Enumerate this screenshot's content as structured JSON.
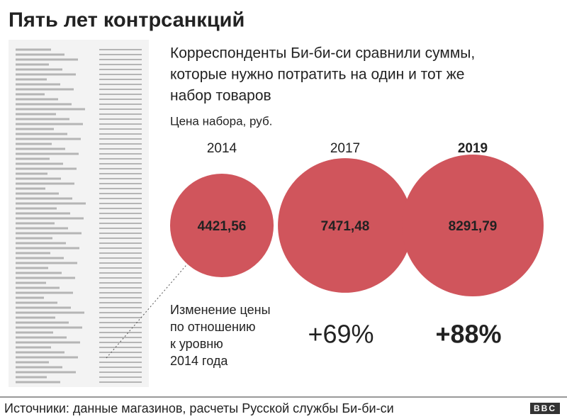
{
  "chart_data": {
    "type": "bubble",
    "title": "Пять лет контрсанкций",
    "subtitle": [
      "Корреспонденты Би-би-си сравнили суммы,",
      "которые нужно потратить на один и тот же",
      "набор товаров"
    ],
    "value_label": "Цена набора, руб.",
    "categories": [
      "2014",
      "2017",
      "2019"
    ],
    "values": [
      4421.56,
      7471.48,
      8291.79
    ],
    "value_labels": [
      "4421,56",
      "7471,48",
      "8291,79"
    ],
    "color": "#d0555c",
    "change_label": [
      "Изменение цены",
      "по отношению",
      "к уровню",
      "2014 года"
    ],
    "changes": [
      null,
      69,
      88
    ],
    "change_labels": [
      null,
      "+69%",
      "+88%"
    ],
    "source": "Источники: данные магазинов, расчеты Русской службы Би-би-си",
    "logo": "BBC"
  }
}
